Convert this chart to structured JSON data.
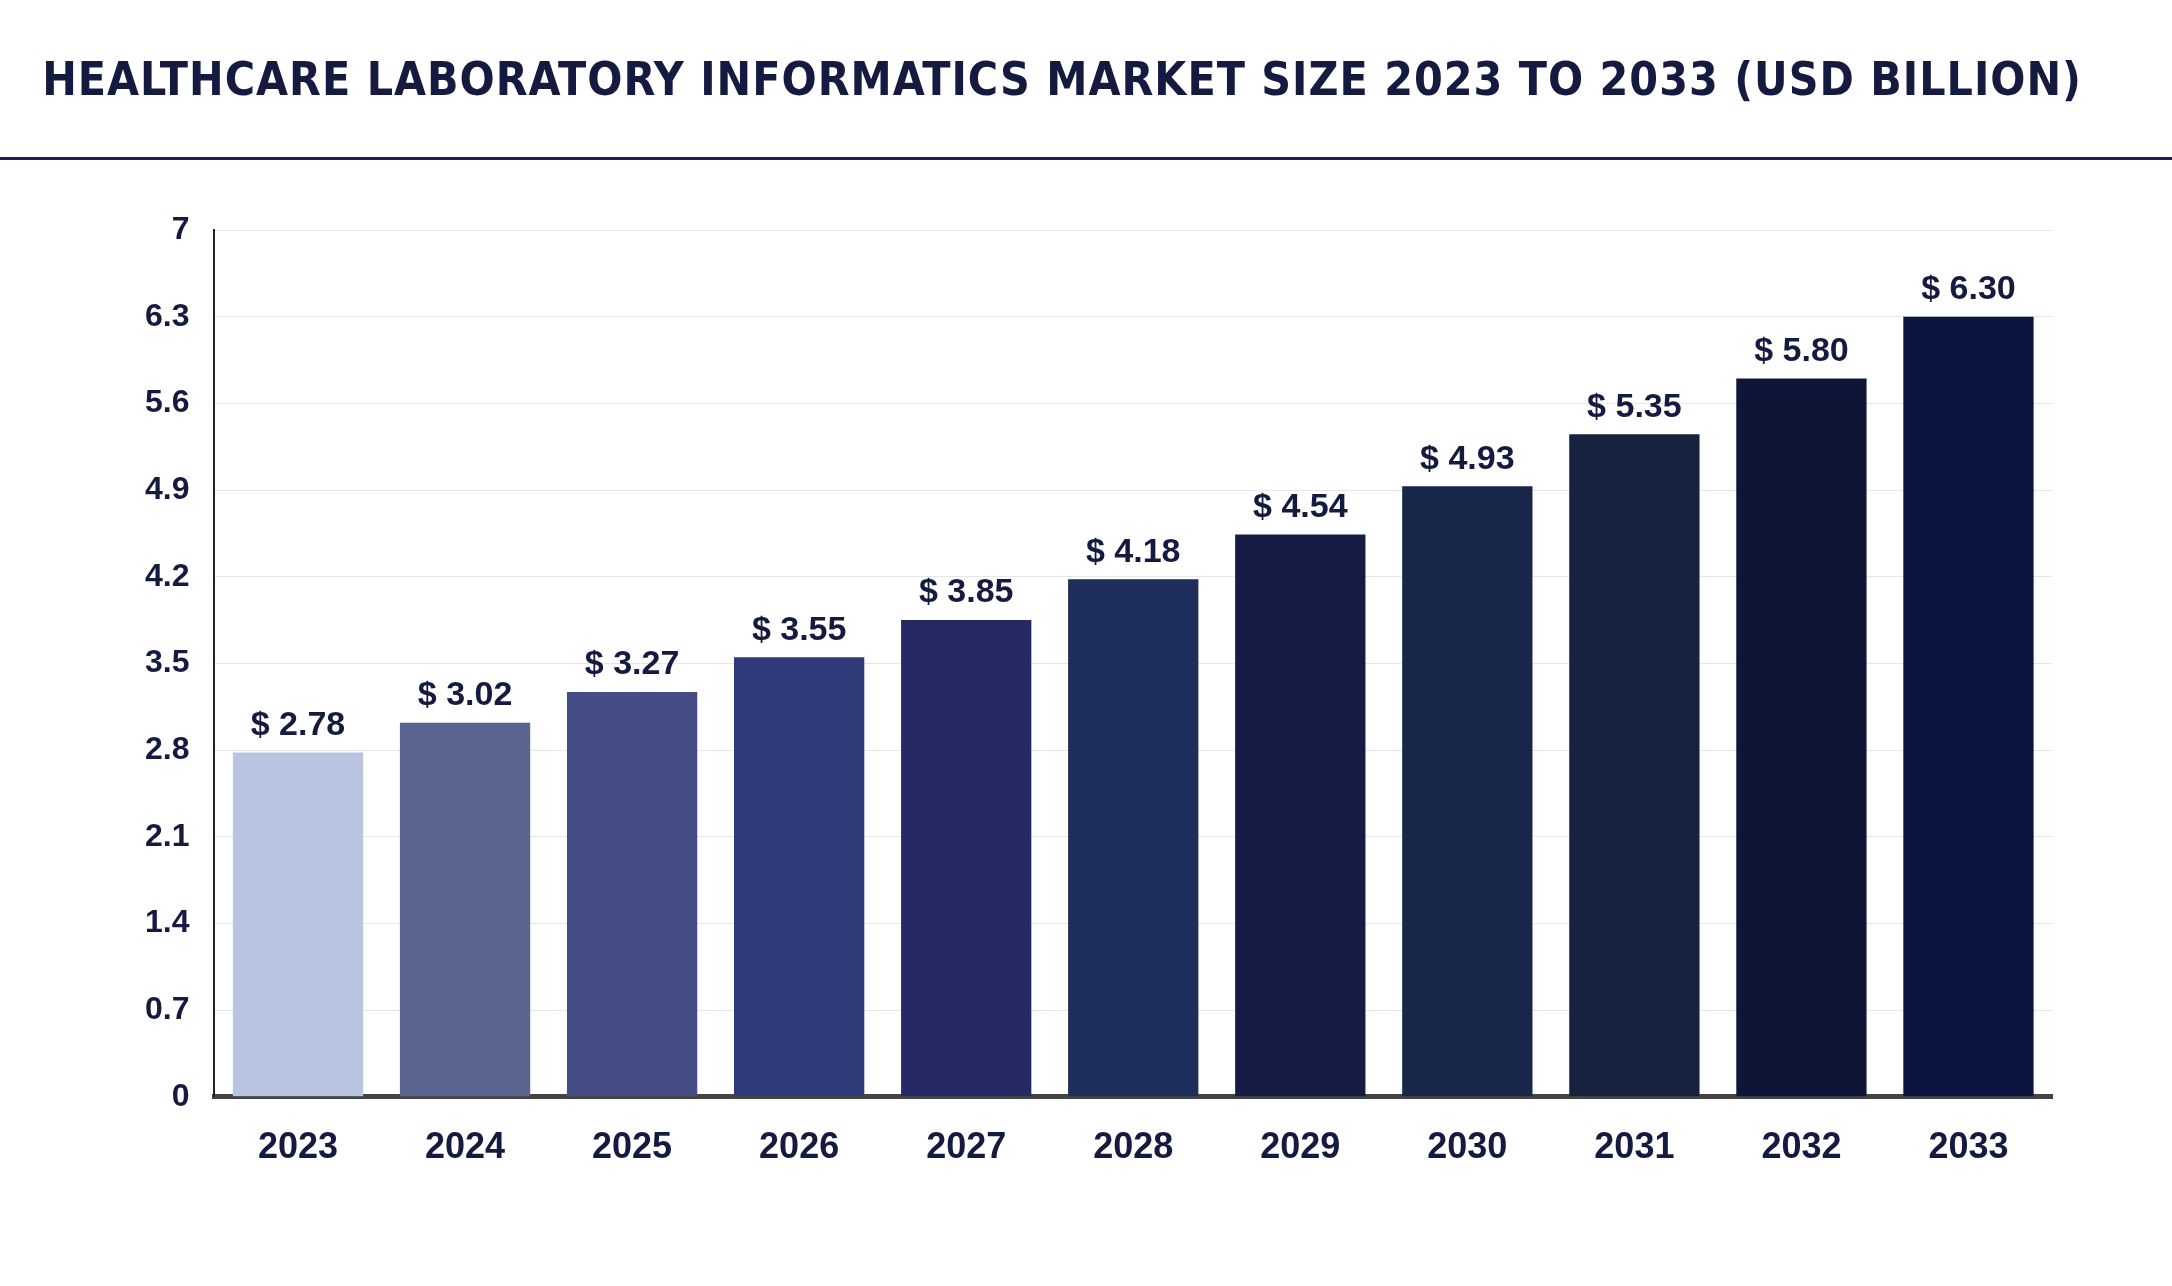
{
  "chart_data": {
    "type": "bar",
    "title": "HEALTHCARE LABORATORY INFORMATICS MARKET SIZE 2023 TO 2033 (USD BILLION)",
    "categories": [
      "2023",
      "2024",
      "2025",
      "2026",
      "2027",
      "2028",
      "2029",
      "2030",
      "2031",
      "2032",
      "2033"
    ],
    "values": [
      2.78,
      3.02,
      3.27,
      3.55,
      3.85,
      4.18,
      4.54,
      4.93,
      5.35,
      5.8,
      6.3
    ],
    "value_labels": [
      "$ 2.78",
      "$ 3.02",
      "$ 3.27",
      "$ 3.55",
      "$ 3.85",
      "$ 4.18",
      "$ 4.54",
      "$ 4.93",
      "$ 5.35",
      "$ 5.80",
      "$ 6.30"
    ],
    "colors": [
      "#b8c4e0",
      "#5a6590",
      "#464c85",
      "#2f3a78",
      "#252a65",
      "#1e2e5a",
      "#141c45",
      "#18264a",
      "#17223f",
      "#0e1638",
      "#0c1440"
    ],
    "ylim": [
      0,
      7
    ],
    "yticks": [
      0,
      0.7,
      1.4,
      2.1,
      2.8,
      3.5,
      4.2,
      4.9,
      5.6,
      6.3,
      7
    ],
    "grid": "y",
    "legend": false
  }
}
